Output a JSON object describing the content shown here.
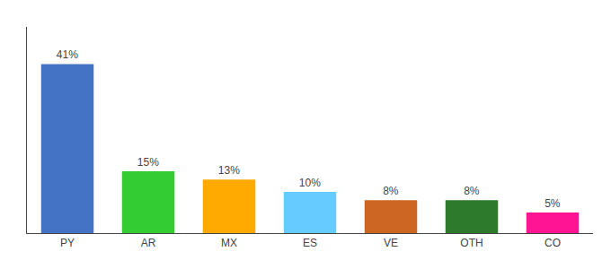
{
  "chart_data": {
    "type": "bar",
    "categories": [
      "PY",
      "AR",
      "MX",
      "ES",
      "VE",
      "OTH",
      "CO"
    ],
    "values": [
      41,
      15,
      13,
      10,
      8,
      8,
      5
    ],
    "value_labels": [
      "41%",
      "15%",
      "13%",
      "10%",
      "8%",
      "8%",
      "5%"
    ],
    "colors": [
      "#4472c4",
      "#33cc33",
      "#ffaa00",
      "#66ccff",
      "#cc6622",
      "#2d7a2d",
      "#ff1493"
    ],
    "ylim": [
      0,
      50
    ],
    "data_labels": true,
    "tick_labels": "x",
    "grid": false
  }
}
